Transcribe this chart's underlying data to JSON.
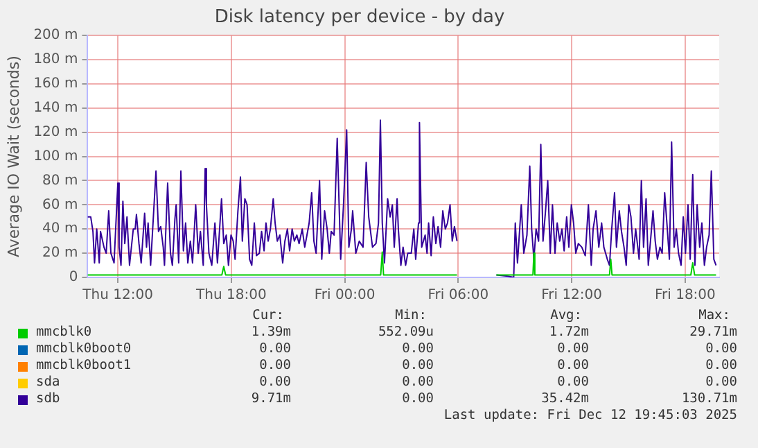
{
  "chart_data": {
    "type": "line",
    "title": "Disk latency per device - by day",
    "ylabel": "Average IO Wait (seconds)",
    "xlim": [
      "2025-12-11T10:24",
      "2025-12-12T19:48"
    ],
    "xticks": [
      {
        "value": "2025-12-11T12:00",
        "label": "Thu 12:00"
      },
      {
        "value": "2025-12-11T18:00",
        "label": "Thu 18:00"
      },
      {
        "value": "2025-12-12T00:00",
        "label": "Fri 00:00"
      },
      {
        "value": "2025-12-12T06:00",
        "label": "Fri 06:00"
      },
      {
        "value": "2025-12-12T12:00",
        "label": "Fri 12:00"
      },
      {
        "value": "2025-12-12T18:00",
        "label": "Fri 18:00"
      }
    ],
    "ylim": [
      0,
      200
    ],
    "yticks": [
      0,
      {
        "value": 20,
        "label": "20 m"
      },
      {
        "value": 40,
        "label": "40 m"
      },
      {
        "value": 60,
        "label": "60 m"
      },
      {
        "value": 80,
        "label": "80 m"
      },
      {
        "value": 100,
        "label": "100 m"
      },
      {
        "value": 120,
        "label": "120 m"
      },
      {
        "value": 140,
        "label": "140 m"
      },
      {
        "value": 160,
        "label": "160 m"
      },
      {
        "value": 180,
        "label": "180 m"
      },
      {
        "value": 200,
        "label": "200 m"
      }
    ],
    "grid": true,
    "legend": "bottom",
    "marker": "none",
    "line_style": "solid",
    "series": [
      {
        "name": "mmcblk0",
        "color": "#00cc00",
        "x": [
          "2025-12-11T10:24",
          "2025-12-11T17:30",
          "2025-12-11T17:36",
          "2025-12-11T17:42",
          "2025-12-12T01:54",
          "2025-12-12T01:59",
          "2025-12-12T02:03",
          "2025-12-12T05:56",
          "2025-12-12T07:00",
          "2025-12-12T08:01",
          "2025-12-12T09:57",
          "2025-12-12T10:00",
          "2025-12-12T10:03",
          "2025-12-12T14:00",
          "2025-12-12T14:04",
          "2025-12-12T14:08",
          "2025-12-12T18:18",
          "2025-12-12T18:24",
          "2025-12-12T18:30",
          "2025-12-12T19:38"
        ],
        "values": [
          2,
          2,
          9,
          2,
          2,
          21,
          2,
          2,
          null,
          2,
          2,
          20,
          2,
          2,
          15,
          2,
          2,
          12,
          2,
          2
        ]
      },
      {
        "name": "mmcblk0boot0",
        "color": "#0066b3"
      },
      {
        "name": "mmcblk0boot1",
        "color": "#ff8000"
      },
      {
        "name": "sda",
        "color": "#ffcc00"
      },
      {
        "name": "sdb",
        "color": "#330099",
        "x": [
          "2025-12-11T10:24",
          "2025-12-11T10:34",
          "2025-12-11T10:41",
          "2025-12-11T10:46",
          "2025-12-11T10:53",
          "2025-12-11T11:01",
          "2025-12-11T11:05",
          "2025-12-11T11:16",
          "2025-12-11T11:23",
          "2025-12-11T11:31",
          "2025-12-11T11:38",
          "2025-12-11T11:48",
          "2025-12-11T12:00",
          "2025-12-11T12:04",
          "2025-12-11T12:10",
          "2025-12-11T12:16",
          "2025-12-11T12:22",
          "2025-12-11T12:29",
          "2025-12-11T12:37",
          "2025-12-11T12:49",
          "2025-12-11T12:55",
          "2025-12-11T12:59",
          "2025-12-11T13:07",
          "2025-12-11T13:14",
          "2025-12-11T13:25",
          "2025-12-11T13:31",
          "2025-12-11T13:36",
          "2025-12-11T13:44",
          "2025-12-11T14:01",
          "2025-12-11T14:09",
          "2025-12-11T14:16",
          "2025-12-11T14:24",
          "2025-12-11T14:28",
          "2025-12-11T14:38",
          "2025-12-11T14:47",
          "2025-12-11T14:53",
          "2025-12-11T15:01",
          "2025-12-11T15:05",
          "2025-12-11T15:13",
          "2025-12-11T15:20",
          "2025-12-11T15:28",
          "2025-12-11T15:35",
          "2025-12-11T15:42",
          "2025-12-11T15:50",
          "2025-12-11T15:57",
          "2025-12-11T16:07",
          "2025-12-11T16:15",
          "2025-12-11T16:22",
          "2025-12-11T16:31",
          "2025-12-11T16:37",
          "2025-12-11T16:41",
          "2025-12-11T16:49",
          "2025-12-11T16:58",
          "2025-12-11T17:08",
          "2025-12-11T17:16",
          "2025-12-11T17:29",
          "2025-12-11T17:36",
          "2025-12-11T17:44",
          "2025-12-11T17:51",
          "2025-12-11T17:59",
          "2025-12-11T18:06",
          "2025-12-11T18:12",
          "2025-12-11T18:21",
          "2025-12-11T18:29",
          "2025-12-11T18:35",
          "2025-12-11T18:43",
          "2025-12-11T18:50",
          "2025-12-11T18:58",
          "2025-12-11T19:05",
          "2025-12-11T19:13",
          "2025-12-11T19:20",
          "2025-12-11T19:29",
          "2025-12-11T19:36",
          "2025-12-11T19:44",
          "2025-12-11T19:50",
          "2025-12-11T19:57",
          "2025-12-11T20:04",
          "2025-12-11T20:13",
          "2025-12-11T20:19",
          "2025-12-11T20:26",
          "2025-12-11T20:34",
          "2025-12-11T20:43",
          "2025-12-11T20:50",
          "2025-12-11T20:58",
          "2025-12-11T21:05",
          "2025-12-11T21:13",
          "2025-12-11T21:20",
          "2025-12-11T21:28",
          "2025-12-11T21:35",
          "2025-12-11T21:45",
          "2025-12-11T21:53",
          "2025-12-11T22:00",
          "2025-12-11T22:07",
          "2025-12-11T22:15",
          "2025-12-11T22:22",
          "2025-12-11T22:29",
          "2025-12-11T22:40",
          "2025-12-11T22:47",
          "2025-12-11T22:56",
          "2025-12-11T23:04",
          "2025-12-11T23:11",
          "2025-12-11T23:17",
          "2025-12-11T23:26",
          "2025-12-11T23:36",
          "2025-12-11T23:47",
          "2025-12-11T23:56",
          "2025-12-12T00:06",
          "2025-12-12T00:13",
          "2025-12-12T00:21",
          "2025-12-12T00:25",
          "2025-12-12T00:35",
          "2025-12-12T00:46",
          "2025-12-12T00:58",
          "2025-12-12T01:08",
          "2025-12-12T01:16",
          "2025-12-12T01:28",
          "2025-12-12T01:39",
          "2025-12-12T01:47",
          "2025-12-12T01:53",
          "2025-12-12T01:59",
          "2025-12-12T02:06",
          "2025-12-12T02:16",
          "2025-12-12T02:24",
          "2025-12-12T02:31",
          "2025-12-12T02:37",
          "2025-12-12T02:46",
          "2025-12-12T02:50",
          "2025-12-12T02:58",
          "2025-12-12T03:05",
          "2025-12-12T03:13",
          "2025-12-12T03:20",
          "2025-12-12T03:31",
          "2025-12-12T03:39",
          "2025-12-12T03:45",
          "2025-12-12T03:54",
          "2025-12-12T03:57",
          "2025-12-12T04:04",
          "2025-12-12T04:15",
          "2025-12-12T04:21",
          "2025-12-12T04:26",
          "2025-12-12T04:34",
          "2025-12-12T04:41",
          "2025-12-12T04:49",
          "2025-12-12T04:56",
          "2025-12-12T05:04",
          "2025-12-12T05:11",
          "2025-12-12T05:19",
          "2025-12-12T05:26",
          "2025-12-12T05:34",
          "2025-12-12T05:41",
          "2025-12-12T05:48",
          "2025-12-12T05:56",
          "2025-12-12T07:00",
          "2025-12-12T08:01",
          "2025-12-12T08:38",
          "2025-12-12T08:56",
          "2025-12-12T09:01",
          "2025-12-12T09:08",
          "2025-12-12T09:20",
          "2025-12-12T09:28",
          "2025-12-12T09:38",
          "2025-12-12T09:47",
          "2025-12-12T09:53",
          "2025-12-12T10:00",
          "2025-12-12T10:07",
          "2025-12-12T10:15",
          "2025-12-12T10:22",
          "2025-12-12T10:29",
          "2025-12-12T10:37",
          "2025-12-12T10:44",
          "2025-12-12T10:52",
          "2025-12-12T10:59",
          "2025-12-12T11:07",
          "2025-12-12T11:14",
          "2025-12-12T11:22",
          "2025-12-12T11:29",
          "2025-12-12T11:36",
          "2025-12-12T11:44",
          "2025-12-12T11:51",
          "2025-12-12T11:59",
          "2025-12-12T12:06",
          "2025-12-12T12:13",
          "2025-12-12T12:21",
          "2025-12-12T12:32",
          "2025-12-12T12:43",
          "2025-12-12T12:53",
          "2025-12-12T13:02",
          "2025-12-12T13:08",
          "2025-12-12T13:17",
          "2025-12-12T13:26",
          "2025-12-12T13:35",
          "2025-12-12T13:42",
          "2025-12-12T13:53",
          "2025-12-12T14:00",
          "2025-12-12T14:07",
          "2025-12-12T14:16",
          "2025-12-12T14:22",
          "2025-12-12T14:31",
          "2025-12-12T14:38",
          "2025-12-12T14:46",
          "2025-12-12T14:53",
          "2025-12-12T15:01",
          "2025-12-12T15:08",
          "2025-12-12T15:16",
          "2025-12-12T15:23",
          "2025-12-12T15:34",
          "2025-12-12T15:41",
          "2025-12-12T15:48",
          "2025-12-12T15:56",
          "2025-12-12T16:03",
          "2025-12-12T16:10",
          "2025-12-12T16:18",
          "2025-12-12T16:25",
          "2025-12-12T16:32",
          "2025-12-12T16:40",
          "2025-12-12T16:47",
          "2025-12-12T16:55",
          "2025-12-12T17:02",
          "2025-12-12T17:10",
          "2025-12-12T17:17",
          "2025-12-12T17:25",
          "2025-12-12T17:32",
          "2025-12-12T17:39",
          "2025-12-12T17:47",
          "2025-12-12T17:54",
          "2025-12-12T18:01",
          "2025-12-12T18:09",
          "2025-12-12T18:16",
          "2025-12-12T18:24",
          "2025-12-12T18:31",
          "2025-12-12T18:38",
          "2025-12-12T18:46",
          "2025-12-12T18:53",
          "2025-12-12T19:01",
          "2025-12-12T19:08",
          "2025-12-12T19:16",
          "2025-12-12T19:23",
          "2025-12-12T19:31",
          "2025-12-12T19:38"
        ],
        "values": [
          50,
          50,
          38,
          12,
          40,
          12,
          38,
          25,
          20,
          55,
          20,
          12,
          78,
          25,
          10,
          63,
          28,
          50,
          10,
          40,
          40,
          52,
          28,
          12,
          53,
          25,
          45,
          10,
          88,
          38,
          42,
          25,
          10,
          78,
          20,
          10,
          48,
          60,
          12,
          88,
          22,
          45,
          12,
          30,
          12,
          60,
          20,
          38,
          10,
          90,
          60,
          20,
          10,
          45,
          12,
          65,
          28,
          35,
          10,
          35,
          30,
          15,
          55,
          83,
          30,
          65,
          60,
          15,
          10,
          45,
          18,
          20,
          38,
          22,
          45,
          30,
          40,
          65,
          45,
          30,
          35,
          12,
          30,
          40,
          22,
          40,
          30,
          35,
          28,
          40,
          25,
          35,
          45,
          70,
          30,
          20,
          80,
          15,
          55,
          40,
          20,
          38,
          35,
          115,
          15,
          60,
          122,
          25,
          40,
          55,
          20,
          30,
          25,
          95,
          50,
          25,
          28,
          45,
          130,
          45,
          12,
          65,
          50,
          60,
          25,
          65,
          40,
          10,
          25,
          10,
          20,
          20,
          40,
          15,
          45,
          128,
          25,
          35,
          20,
          45,
          18,
          50,
          28,
          42,
          25,
          55,
          40,
          45,
          60,
          30,
          42,
          30,
          null,
          2,
          1,
          0,
          45,
          12,
          60,
          20,
          35,
          92,
          40,
          15,
          40,
          30,
          110,
          30,
          55,
          80,
          20,
          60,
          20,
          45,
          30,
          40,
          22,
          50,
          25,
          60,
          45,
          20,
          28,
          25,
          18,
          60,
          10,
          40,
          55,
          25,
          45,
          25,
          15,
          10,
          40,
          70,
          25,
          55,
          38,
          25,
          10,
          60,
          50,
          20,
          40,
          15,
          80,
          25,
          65,
          10,
          30,
          55,
          30,
          15,
          25,
          20,
          70,
          45,
          15,
          112,
          25,
          40,
          20,
          10,
          50,
          20,
          60,
          15,
          85,
          10,
          60,
          25,
          45,
          10,
          25,
          35,
          88,
          15,
          10
        ]
      }
    ],
    "annotations": [
      "Cur:",
      "Min:",
      "Avg:",
      "Max:",
      "1.39m",
      "552.09u",
      "1.72m",
      "29.71m",
      "0.00",
      "0.00",
      "0.00",
      "0.00",
      "0.00",
      "0.00",
      "0.00",
      "0.00",
      "0.00",
      "0.00",
      "0.00",
      "0.00",
      "9.71m",
      "0.00",
      "35.42m",
      "130.71m",
      "Last update: Fri Dec 12 19:45:03 2025"
    ]
  }
}
